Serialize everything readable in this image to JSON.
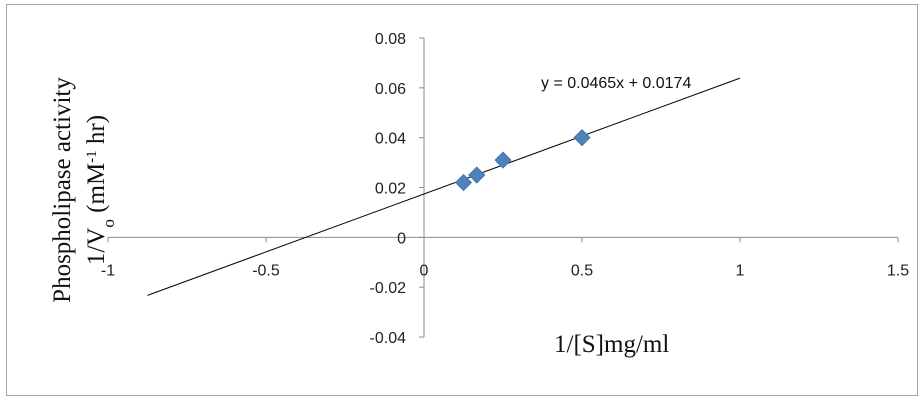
{
  "chart_data": {
    "type": "scatter",
    "title": "",
    "xlabel": "1/[S]mg/ml",
    "ylabel": {
      "line1": "Phospholipase activity",
      "line2_prefix": "1/V",
      "line2_sub": "o",
      "line2_mid": " (mM",
      "line2_sup": "-1",
      "line2_suffix": " hr)"
    },
    "xlim": [
      -1,
      1.5
    ],
    "ylim": [
      -0.04,
      0.08
    ],
    "x_ticks": [
      -1,
      -0.5,
      0,
      0.5,
      1,
      1.5
    ],
    "x_tick_labels": [
      "-1",
      "-0.5",
      "0",
      "0.5",
      "1",
      "1.5"
    ],
    "y_ticks": [
      -0.04,
      -0.02,
      0,
      0.02,
      0.04,
      0.06,
      0.08
    ],
    "y_tick_labels": [
      "-0.04",
      "-0.02",
      "0",
      "0.02",
      "0.04",
      "0.06",
      "0.08"
    ],
    "grid": false,
    "legend": "none",
    "series": [
      {
        "marker": "diamond",
        "color": "#4f81bd",
        "x": [
          0.125,
          0.167,
          0.25,
          0.5
        ],
        "y": [
          0.022,
          0.025,
          0.031,
          0.04
        ]
      }
    ],
    "trendline": {
      "slope": 0.0465,
      "intercept": 0.0174,
      "x_range": [
        -0.875,
        1.0
      ],
      "color": "#000000",
      "equation": "y = 0.0465x + 0.0174",
      "equation_anchor": [
        0.37,
        0.0605
      ]
    }
  }
}
